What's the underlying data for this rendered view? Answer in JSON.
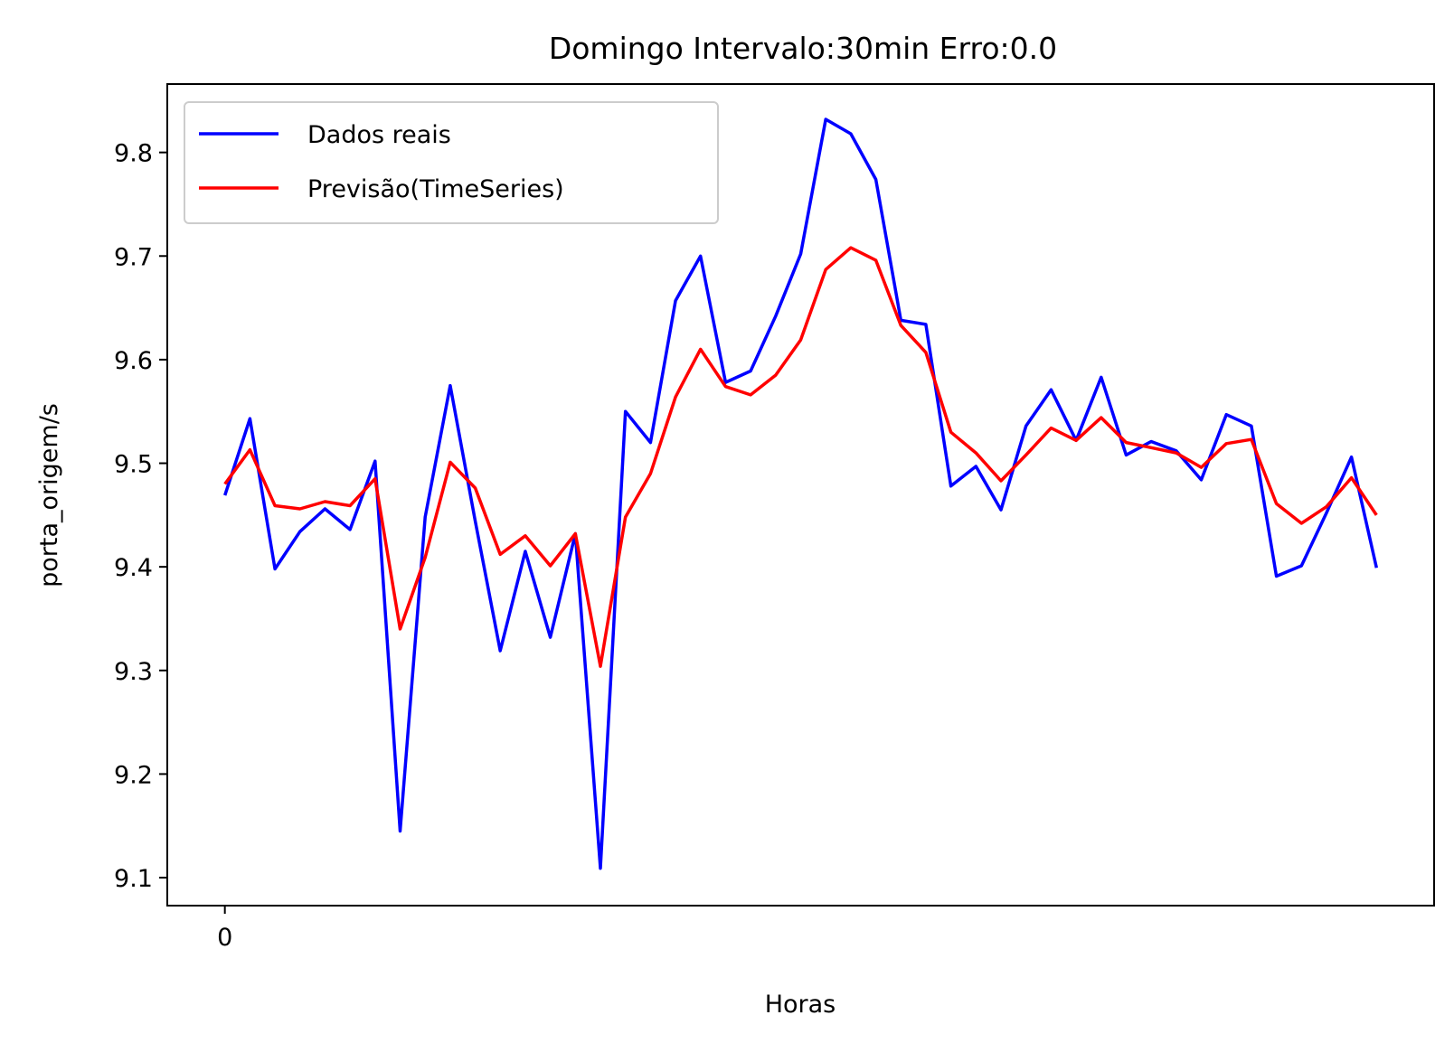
{
  "chart_data": {
    "type": "line",
    "title": "Domingo Intervalo:30min Erro:0.0",
    "xlabel": "Horas",
    "ylabel": "porta_origem/s",
    "xlim": [
      -2.3,
      48.3
    ],
    "ylim": [
      9.073,
      9.866
    ],
    "x_ticks": [
      0
    ],
    "x_tick_labels": [
      "0"
    ],
    "y_ticks": [
      9.1,
      9.2,
      9.3,
      9.4,
      9.5,
      9.6,
      9.7,
      9.8
    ],
    "y_tick_labels": [
      "9.1",
      "9.2",
      "9.3",
      "9.4",
      "9.5",
      "9.6",
      "9.7",
      "9.8"
    ],
    "grid": false,
    "legend_position": "upper-left",
    "x": [
      0,
      1,
      2,
      3,
      4,
      5,
      6,
      7,
      8,
      9,
      10,
      11,
      12,
      13,
      14,
      15,
      16,
      17,
      18,
      19,
      20,
      21,
      22,
      23,
      24,
      25,
      26,
      27,
      28,
      29,
      30,
      31,
      32,
      33,
      34,
      35,
      36,
      37,
      38,
      39,
      40,
      41,
      42,
      43,
      44,
      45,
      46
    ],
    "series": [
      {
        "name": "Dados reais",
        "color": "#0000ff",
        "values": [
          9.469,
          9.543,
          9.398,
          9.434,
          9.456,
          9.436,
          9.502,
          9.145,
          9.448,
          9.575,
          9.444,
          9.319,
          9.415,
          9.332,
          9.432,
          9.109,
          9.55,
          9.52,
          9.657,
          9.7,
          9.578,
          9.589,
          9.642,
          9.702,
          9.832,
          9.818,
          9.774,
          9.638,
          9.634,
          9.478,
          9.497,
          9.455,
          9.536,
          9.571,
          9.522,
          9.583,
          9.508,
          9.521,
          9.512,
          9.484,
          9.547,
          9.536,
          9.391,
          9.401,
          9.452,
          9.506,
          9.399
        ]
      },
      {
        "name": "Previsão(TimeSeries)",
        "color": "#ff0000",
        "values": [
          9.48,
          9.513,
          9.459,
          9.456,
          9.463,
          9.459,
          9.485,
          9.34,
          9.409,
          9.501,
          9.476,
          9.412,
          9.43,
          9.401,
          9.432,
          9.304,
          9.448,
          9.49,
          9.564,
          9.61,
          9.574,
          9.566,
          9.585,
          9.619,
          9.687,
          9.708,
          9.696,
          9.633,
          9.607,
          9.53,
          9.51,
          9.483,
          9.508,
          9.534,
          9.522,
          9.544,
          9.52,
          9.515,
          9.51,
          9.496,
          9.519,
          9.523,
          9.461,
          9.442,
          9.458,
          9.486,
          9.45
        ]
      }
    ]
  }
}
